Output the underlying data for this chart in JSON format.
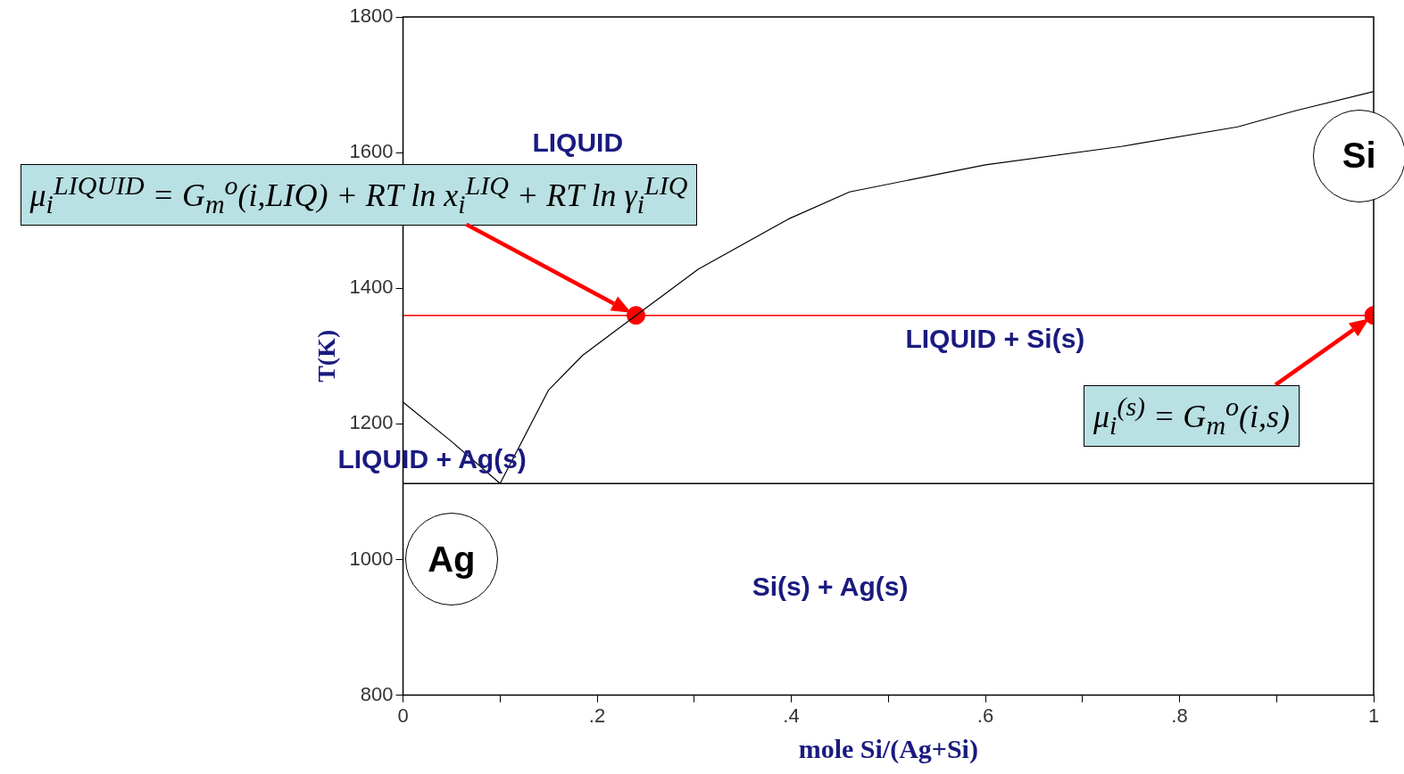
{
  "chart_data": {
    "type": "line",
    "xlabel": "mole Si/(Ag+Si)",
    "ylabel": "T(K)",
    "xlim": [
      0,
      1
    ],
    "ylim": [
      800,
      1800
    ],
    "xticks": [
      0,
      {
        "value": 0.1,
        "label": null
      },
      {
        "value": 0.2,
        "label": ".2"
      },
      {
        "value": 0.3,
        "label": null
      },
      {
        "value": 0.4,
        "label": ".4"
      },
      {
        "value": 0.5,
        "label": null
      },
      {
        "value": 0.6,
        "label": ".6"
      },
      {
        "value": 0.7,
        "label": null
      },
      {
        "value": 0.8,
        "label": ".8"
      },
      {
        "value": 0.9,
        "label": null
      },
      1
    ],
    "yticks": [
      800,
      1000,
      1200,
      1400,
      1600,
      1800
    ],
    "grid": false,
    "legend": false,
    "series": [
      {
        "type": "line",
        "color": "#000000",
        "x": [
          0,
          0.05,
          0.1
        ],
        "values": [
          1232,
          1174,
          1112
        ]
      },
      {
        "type": "line",
        "color": "#000000",
        "x": [
          0.1,
          0.15,
          0.185,
          0.24,
          0.304,
          0.397,
          0.46,
          0.6,
          0.74,
          0.86,
          0.92,
          1
        ],
        "values": [
          1112,
          1250,
          1301,
          1360,
          1428,
          1502,
          1542,
          1582,
          1609,
          1638,
          1662,
          1690
        ]
      },
      {
        "type": "scatter",
        "color": "#ff0000",
        "marker": "circle",
        "x": [
          0.24,
          1
        ],
        "values": [
          1360,
          1360
        ]
      }
    ],
    "ref_lines": [
      {
        "axis": "y",
        "value": 1112,
        "color": "#000000"
      },
      {
        "axis": "y",
        "value": 1360,
        "color": "#ff0000"
      }
    ],
    "annotations": [
      "LIQUID",
      "LIQUID + Si(s)",
      "LIQUID + Ag(s)",
      "Si(s) + Ag(s)",
      "Ag",
      "Si",
      "μ$_{i}$$^{LIQUID}$ = G$_{m}$$^{o}$(i,LIQ) + RT ln x$_{i}$$^{LIQ}$ + RT ln γ$_{i}$$^{LIQ}$",
      "μ$_{i}$$^{(s)}$ = G$_{m}$$^{o}$(i,s)"
    ]
  }
}
